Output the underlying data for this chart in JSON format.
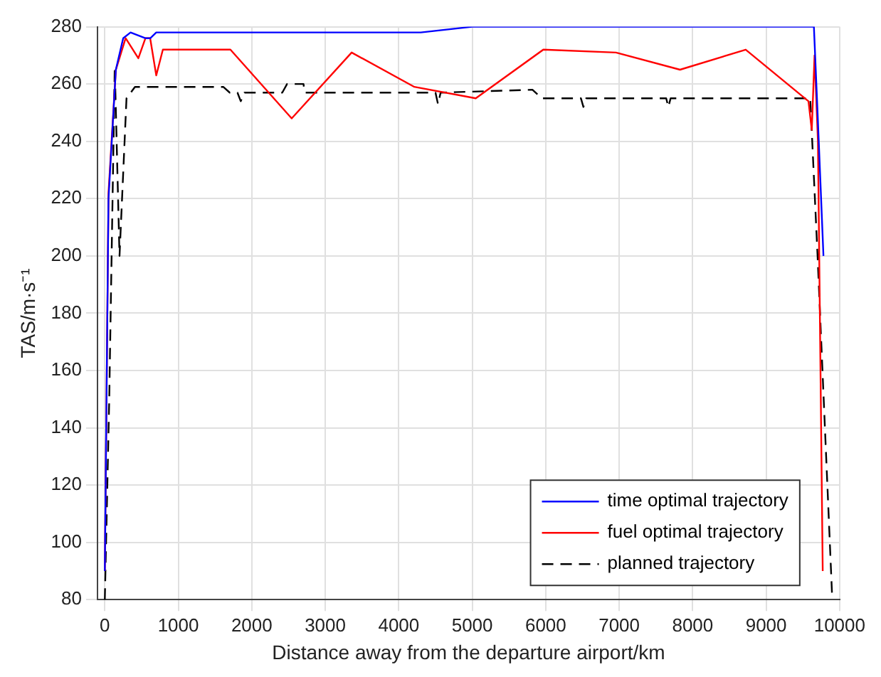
{
  "chart_data": {
    "type": "line",
    "xlabel": "Distance away from the departure airport/km",
    "ylabel": "TAS/m·s⁻¹",
    "xlim": [
      -100,
      10000
    ],
    "ylim": [
      80,
      280
    ],
    "xticks": [
      0,
      1000,
      2000,
      3000,
      4000,
      5000,
      6000,
      7000,
      8000,
      9000,
      10000
    ],
    "yticks": [
      80,
      100,
      120,
      140,
      160,
      180,
      200,
      220,
      240,
      260,
      280
    ],
    "grid": true,
    "legend": "bottom right",
    "marker": "none",
    "series": [
      {
        "name": "time optimal trajectory",
        "color": "#0000ff",
        "line_style": "solid",
        "x": [
          0,
          50,
          150,
          250,
          350,
          450,
          550,
          620,
          700,
          1500,
          3000,
          4300,
          5000,
          6000,
          8000,
          9650,
          9700,
          9780
        ],
        "values": [
          90,
          220,
          265,
          276,
          278,
          277,
          276,
          276,
          278,
          278,
          278,
          278,
          280,
          280,
          280,
          280,
          250,
          200
        ]
      },
      {
        "name": "fuel optimal trajectory",
        "color": "#ff0000",
        "line_style": "solid",
        "x": [
          0,
          50,
          150,
          283,
          456,
          553,
          617,
          700,
          790,
          1709,
          2543,
          3359,
          4213,
          5048,
          5967,
          6956,
          7828,
          8722,
          9576,
          9621,
          9659,
          9705,
          9770
        ],
        "values": [
          90,
          222,
          265,
          276,
          269,
          276,
          276,
          263,
          272,
          272,
          248,
          271,
          259,
          255,
          272,
          271,
          265,
          272,
          254,
          244,
          270,
          240,
          90
        ]
      },
      {
        "name": "planned trajectory",
        "color": "#000000",
        "line_style": "dashed",
        "x": [
          0,
          60,
          135,
          200,
          295,
          410,
          1612,
          1700,
          1805,
          1850,
          1900,
          2415,
          2480,
          2704,
          2720,
          4500,
          4534,
          4570,
          5819,
          5948,
          6480,
          6513,
          6550,
          7640,
          7669,
          7700,
          9600,
          9700,
          9900
        ],
        "values": [
          80,
          150,
          266,
          200,
          255,
          259,
          259,
          257,
          257,
          254,
          257,
          257,
          260,
          260,
          257,
          257,
          253,
          257,
          258,
          255,
          255,
          252,
          255,
          255,
          252,
          255,
          255,
          200,
          80
        ]
      }
    ]
  }
}
